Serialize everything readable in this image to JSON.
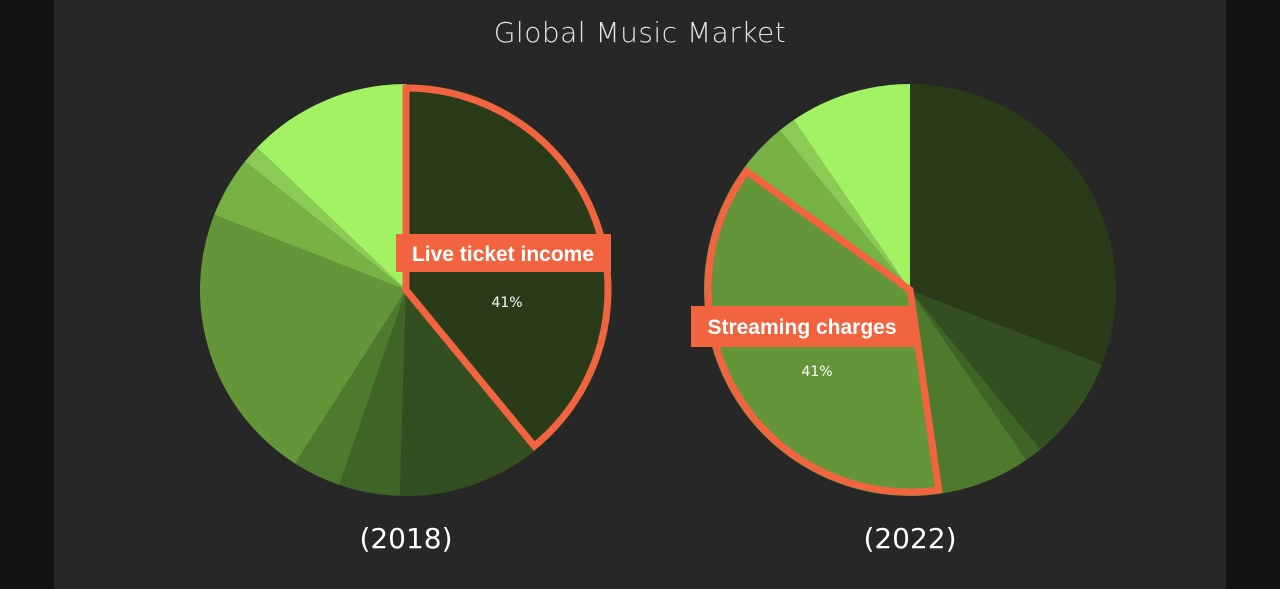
{
  "page": {
    "title": "Global Music Market"
  },
  "chart_data": [
    {
      "type": "pie",
      "title": "(2018)",
      "slices": [
        {
          "label": "Live ticket income",
          "value": 41,
          "color": "#293b19",
          "highlight": true
        },
        {
          "label": "",
          "value": 12,
          "color": "#334e20"
        },
        {
          "label": "",
          "value": 5,
          "color": "#406426"
        },
        {
          "label": "",
          "value": 4,
          "color": "#4e7a2e"
        },
        {
          "label": "",
          "value": 23,
          "color": "#659539"
        },
        {
          "label": "",
          "value": 5,
          "color": "#76b244"
        },
        {
          "label": "",
          "value": 1.5,
          "color": "#8acb56"
        },
        {
          "label": "",
          "value": 13.5,
          "color": "#a3f263"
        }
      ],
      "callout": {
        "text": "Live ticket income",
        "percent": "41%"
      }
    },
    {
      "type": "pie",
      "title": "(2022)",
      "slices": [
        {
          "label": "",
          "value": 34,
          "color": "#293b19"
        },
        {
          "label": "",
          "value": 9,
          "color": "#334e20"
        },
        {
          "label": "",
          "value": 1.5,
          "color": "#406426"
        },
        {
          "label": "",
          "value": 8,
          "color": "#4e7a2e"
        },
        {
          "label": "Streaming charges",
          "value": 41,
          "color": "#659539",
          "highlight": true
        },
        {
          "label": "",
          "value": 4.5,
          "color": "#76b244"
        },
        {
          "label": "",
          "value": 1.5,
          "color": "#8acb56"
        },
        {
          "label": "",
          "value": 10.5,
          "color": "#a3f263"
        }
      ],
      "callout": {
        "text": "Streaming charges",
        "percent": "41%"
      }
    }
  ],
  "colors": {
    "highlight_outline": "#f26340",
    "panel_background": "#272727",
    "page_background": "#121212"
  }
}
